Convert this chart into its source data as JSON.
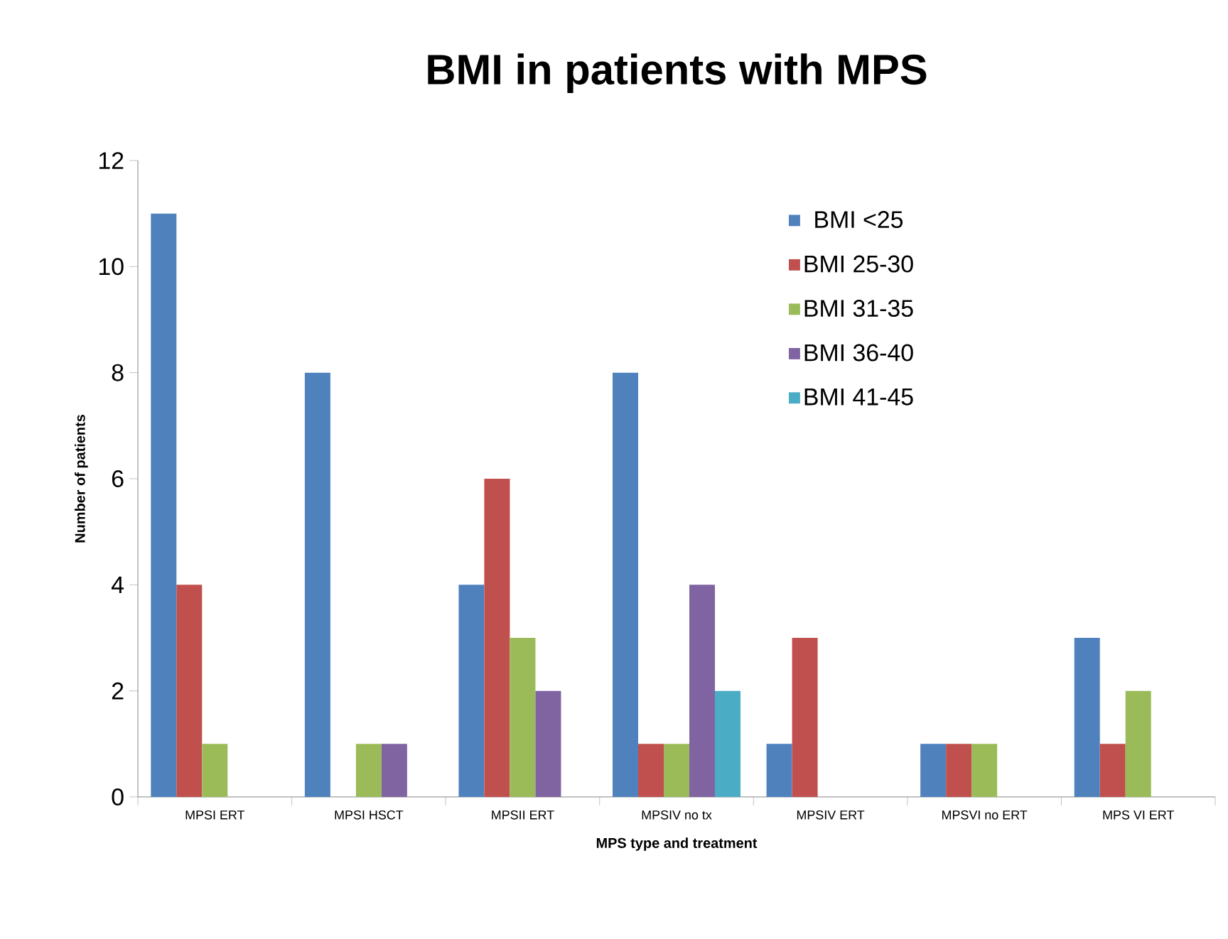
{
  "chart_data": {
    "type": "bar",
    "title": "BMI in patients with MPS",
    "xlabel": "MPS type and treatment",
    "ylabel": "Number of patients",
    "categories": [
      "MPSI ERT",
      "MPSI HSCT",
      "MPSII ERT",
      "MPSIV no tx",
      "MPSIV ERT",
      "MPSVI no ERT",
      "MPS VI ERT"
    ],
    "series": [
      {
        "name": "BMI <25",
        "color": "#4f81bd",
        "values": [
          11,
          8,
          4,
          8,
          1,
          1,
          3
        ]
      },
      {
        "name": "BMI 25-30",
        "color": "#c0504d",
        "values": [
          4,
          0,
          6,
          1,
          3,
          1,
          1
        ]
      },
      {
        "name": "BMI 31-35",
        "color": "#9bbb59",
        "values": [
          1,
          1,
          3,
          1,
          0,
          1,
          2
        ]
      },
      {
        "name": "BMI 36-40",
        "color": "#8064a2",
        "values": [
          0,
          1,
          2,
          4,
          0,
          0,
          0
        ]
      },
      {
        "name": "BMI 41-45",
        "color": "#4bacc6",
        "values": [
          0,
          0,
          0,
          2,
          0,
          0,
          0
        ]
      }
    ],
    "ylim": [
      0,
      12
    ],
    "yticks": [
      0,
      2,
      4,
      6,
      8,
      10,
      12
    ],
    "grid": false,
    "legend": "top right"
  }
}
